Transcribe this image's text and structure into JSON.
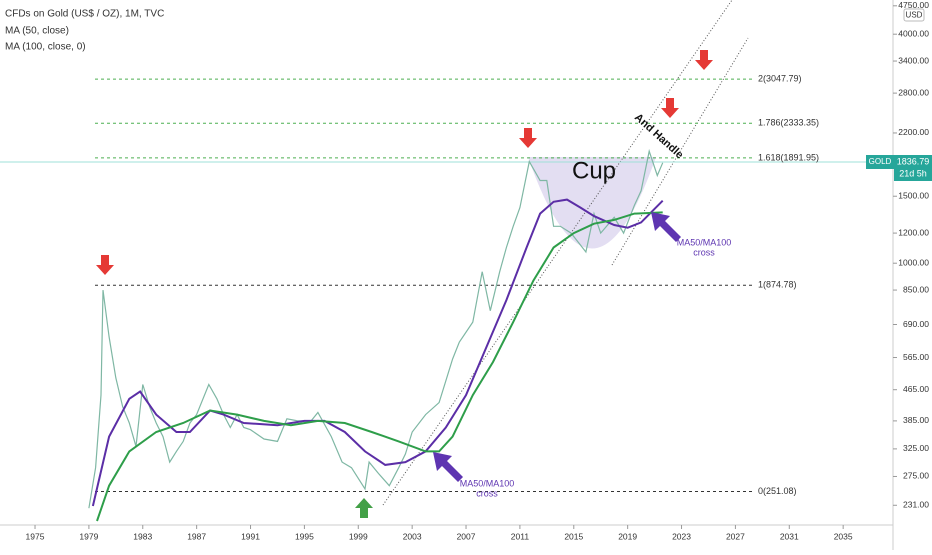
{
  "chart_data": {
    "type": "line",
    "title": "CFDs on Gold (US$ / OZ), 1M, TVC",
    "currency": "USD",
    "symbol": "GOLD",
    "countdown": "21d 5h",
    "log_scale": true,
    "grid": false,
    "xlim": [
      1972.4,
      2038.7
    ],
    "xticks": [
      1975,
      1979,
      1983,
      1987,
      1991,
      1995,
      1999,
      2003,
      2007,
      2011,
      2015,
      2019,
      2023,
      2027,
      2031,
      2035
    ],
    "ylim": [
      205,
      4920
    ],
    "yticks": [
      {
        "value": 4750,
        "label": "4750.00"
      },
      {
        "value": 4000,
        "label": "4000.00"
      },
      {
        "value": 3400,
        "label": "3400.00"
      },
      {
        "value": 2800,
        "label": "2800.00"
      },
      {
        "value": 2200,
        "label": "2200.00"
      },
      {
        "value": 1500,
        "label": "1500.00"
      },
      {
        "value": 1200,
        "label": "1200.00"
      },
      {
        "value": 1000,
        "label": "1000.00"
      },
      {
        "value": 850,
        "label": "850.00"
      },
      {
        "value": 690,
        "label": "690.00"
      },
      {
        "value": 565,
        "label": "565.00"
      },
      {
        "value": 465,
        "label": "465.00"
      },
      {
        "value": 385,
        "label": "385.00"
      },
      {
        "value": 325,
        "label": "325.00"
      },
      {
        "value": 275,
        "label": "275.00"
      },
      {
        "value": 231,
        "label": "231.00"
      }
    ],
    "series": [
      {
        "name": "GOLD",
        "color": "#7fb7a4",
        "x": [
          1979.0,
          1979.5,
          1979.9,
          1980.05,
          1980.5,
          1981.0,
          1981.5,
          1982.0,
          1982.5,
          1983.0,
          1983.5,
          1984.0,
          1984.5,
          1985.0,
          1985.5,
          1986.0,
          1986.5,
          1987.0,
          1987.9,
          1988.5,
          1989.0,
          1989.5,
          1990.0,
          1990.5,
          1991.0,
          1992.0,
          1993.0,
          1993.7,
          1994.5,
          1995.5,
          1996.0,
          1997.0,
          1997.8,
          1998.5,
          1999.5,
          1999.8,
          2000.5,
          2001.3,
          2002.0,
          2002.5,
          2003.0,
          2004.0,
          2005.0,
          2006.0,
          2006.5,
          2007.5,
          2008.2,
          2008.8,
          2009.5,
          2010.0,
          2010.5,
          2011.0,
          2011.7,
          2012.5,
          2013.0,
          2013.5,
          2014.0,
          2014.8,
          2015.9,
          2016.5,
          2017.0,
          2018.0,
          2018.7,
          2019.5,
          2020.0,
          2020.6,
          2021.2,
          2021.6
        ],
        "values": [
          227,
          290,
          450,
          850,
          640,
          500,
          420,
          380,
          330,
          480,
          420,
          380,
          350,
          300,
          320,
          340,
          380,
          400,
          480,
          440,
          400,
          370,
          400,
          370,
          365,
          345,
          340,
          390,
          385,
          385,
          405,
          350,
          300,
          290,
          255,
          300,
          280,
          260,
          290,
          315,
          360,
          400,
          430,
          560,
          620,
          700,
          950,
          750,
          950,
          1100,
          1250,
          1400,
          1850,
          1650,
          1650,
          1250,
          1250,
          1200,
          1070,
          1350,
          1200,
          1320,
          1200,
          1420,
          1550,
          1970,
          1700,
          1836.79
        ]
      },
      {
        "name": "MA (50, close)",
        "color": "#5b2ea6",
        "x": [
          1979.3,
          1980.5,
          1982.0,
          1982.8,
          1984.0,
          1985.5,
          1986.5,
          1988.0,
          1989.0,
          1990.5,
          1993.0,
          1995.0,
          1996.5,
          1998.0,
          1999.5,
          2001.0,
          2002.5,
          2004.0,
          2005.5,
          2007.0,
          2008.5,
          2010.0,
          2011.5,
          2012.5,
          2013.5,
          2014.5,
          2015.5,
          2016.5,
          2018.0,
          2019.0,
          2020.0,
          2021.6
        ],
        "values": [
          230,
          350,
          440,
          460,
          400,
          360,
          360,
          410,
          400,
          380,
          375,
          385,
          385,
          360,
          320,
          295,
          300,
          320,
          370,
          450,
          600,
          800,
          1100,
          1350,
          1450,
          1470,
          1400,
          1330,
          1260,
          1240,
          1280,
          1460
        ]
      },
      {
        "name": "MA (100, close, 0)",
        "color": "#2e9e4a",
        "x": [
          1979.6,
          1980.5,
          1982.0,
          1984.0,
          1986.0,
          1988.0,
          1990.0,
          1992.0,
          1994.0,
          1996.0,
          1998.0,
          2000.0,
          2002.0,
          2004.0,
          2005.0,
          2006.0,
          2007.5,
          2009.0,
          2010.5,
          2012.0,
          2013.5,
          2015.0,
          2016.5,
          2018.0,
          2019.5,
          2021.6
        ],
        "values": [
          210,
          260,
          320,
          360,
          380,
          410,
          400,
          385,
          375,
          385,
          380,
          360,
          340,
          320,
          320,
          350,
          450,
          550,
          700,
          900,
          1100,
          1200,
          1270,
          1300,
          1350,
          1360
        ]
      }
    ],
    "levels": [
      {
        "label": "0(251.08)",
        "value": 251.08,
        "color": "#333333"
      },
      {
        "label": "1(874.78)",
        "value": 874.78,
        "color": "#333333"
      },
      {
        "label": "1.618(1891.95)",
        "value": 1891.95,
        "color": "#4caf50"
      },
      {
        "label": "1.786(2333.35)",
        "value": 2333.35,
        "color": "#4caf50"
      },
      {
        "label": "2(3047.79)",
        "value": 3047.79,
        "color": "#4caf50"
      }
    ],
    "annotations": {
      "cup": "Cup",
      "handle": "And Handle",
      "cross_left": [
        "MA50/MA100",
        "cross"
      ],
      "cross_right": [
        "MA50/MA100",
        "cross"
      ]
    }
  }
}
